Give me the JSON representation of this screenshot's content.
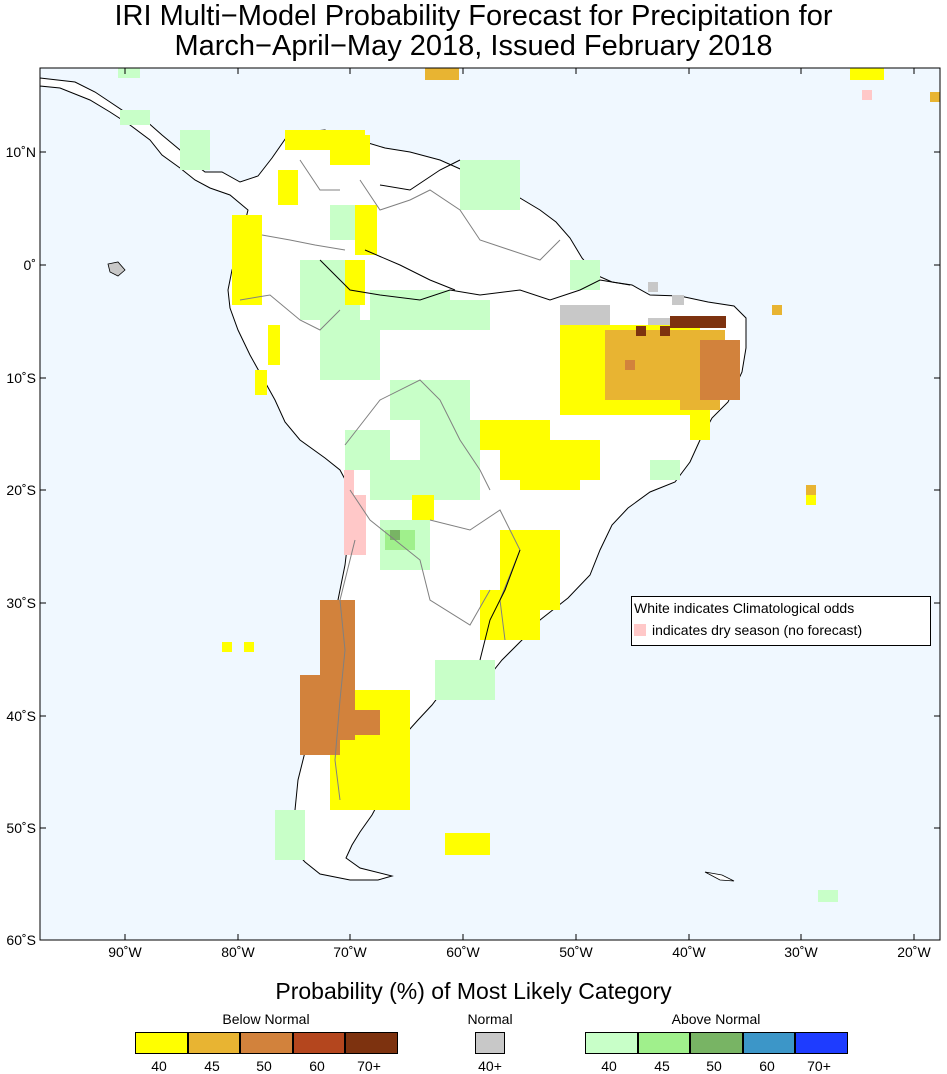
{
  "title": {
    "line1": "IRI Multi−Model Probability Forecast for Precipitation for",
    "line2": "March−April−May 2018, Issued February 2018"
  },
  "axes": {
    "lat_labels": [
      "10˚N",
      "0˚",
      "10˚S",
      "20˚S",
      "30˚S",
      "40˚S",
      "50˚S",
      "60˚S"
    ],
    "lon_labels": [
      "90˚W",
      "80˚W",
      "70˚W",
      "60˚W",
      "50˚W",
      "40˚W",
      "30˚W",
      "20˚W"
    ]
  },
  "annotation": {
    "line1": "White indicates Climatological odds",
    "line2": "indicates dry season (no forecast)"
  },
  "legend": {
    "title": "Probability (%) of Most Likely Category",
    "groups": [
      {
        "name": "Below Normal",
        "labels": [
          "40",
          "45",
          "50",
          "60",
          "70+"
        ],
        "colors": [
          "#ffff00",
          "#e8b432",
          "#d2823c",
          "#b4461e",
          "#7d320f"
        ]
      },
      {
        "name": "Normal",
        "labels": [
          "40+"
        ],
        "colors": [
          "#c8c8c8"
        ]
      },
      {
        "name": "Above Normal",
        "labels": [
          "40",
          "45",
          "50",
          "60",
          "70+"
        ],
        "colors": [
          "#c8ffc8",
          "#a0f08c",
          "#78b464",
          "#3c96c8",
          "#1e3cff"
        ]
      }
    ]
  },
  "colors": {
    "ocean": "#f0f8ff",
    "land": "#ffffff",
    "dry_season": "#ffc8c8"
  }
}
